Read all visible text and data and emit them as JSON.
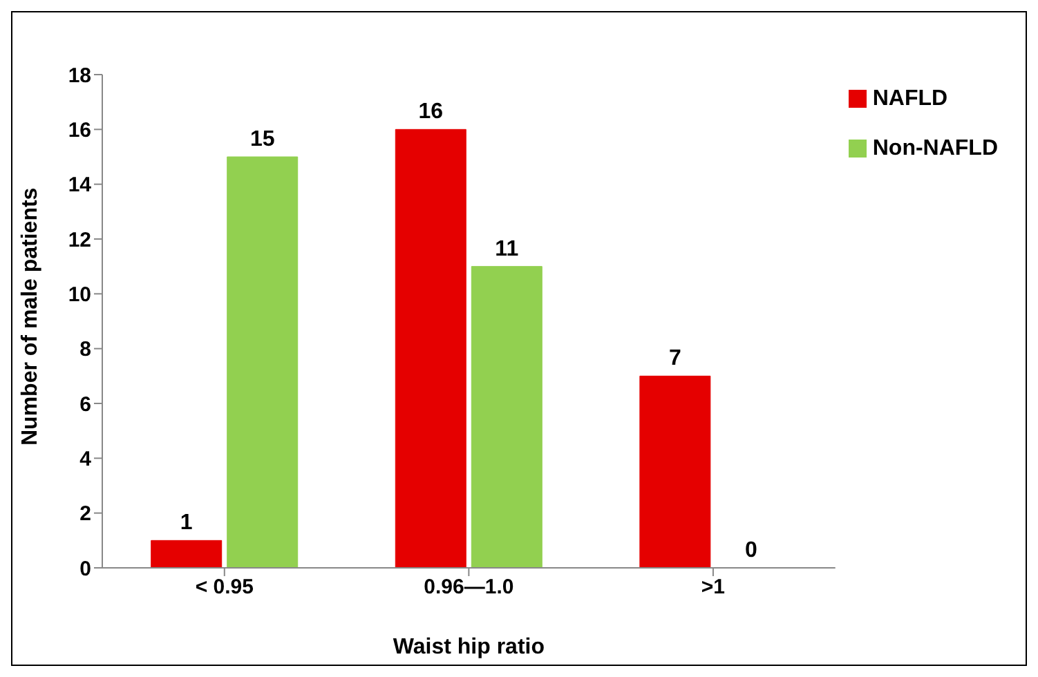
{
  "chart_data": {
    "type": "bar",
    "xlabel": "Waist hip ratio",
    "ylabel": "Number of male patients",
    "categories": [
      "< 0.95",
      "0.96—1.0",
      ">1"
    ],
    "series": [
      {
        "name": "NAFLD",
        "color": "#e50000",
        "values": [
          1,
          16,
          7
        ]
      },
      {
        "name": "Non-NAFLD",
        "color": "#92d050",
        "values": [
          15,
          11,
          0
        ]
      }
    ],
    "ylim": [
      0,
      18
    ],
    "yticks": [
      0,
      2,
      4,
      6,
      8,
      10,
      12,
      14,
      16,
      18
    ],
    "grid": false,
    "legend": "top right",
    "data_labels": true
  }
}
